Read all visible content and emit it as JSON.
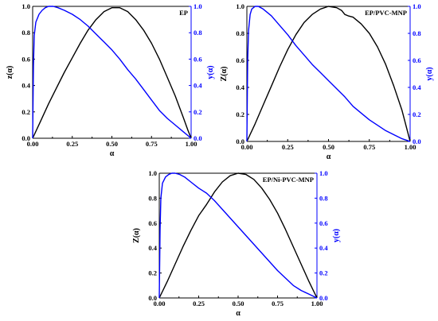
{
  "colors": {
    "z_series": "#000000",
    "y_series": "#0000ff",
    "axis_left": "#000000",
    "axis_right": "#0000ff"
  },
  "chart_data": [
    {
      "type": "line",
      "title": "EP",
      "xlabel": "α",
      "ylabel_left": "z(α)",
      "ylabel_right": "y(α)",
      "xlim": [
        0,
        1
      ],
      "ylim_left": [
        0,
        1.0
      ],
      "ylim_right": [
        0,
        1.0
      ],
      "xticks": [
        "0.00",
        "0.25",
        "0.50",
        "0.75",
        "1.00"
      ],
      "yticks_left": [
        "0.0",
        "0.2",
        "0.4",
        "0.6",
        "0.8",
        "1.0"
      ],
      "yticks_right": [
        "0.0",
        "0.2",
        "0.4",
        "0.6",
        "0.8",
        "1.0"
      ],
      "series": [
        {
          "axis": "left",
          "color": "#000000",
          "x": [
            0,
            0.05,
            0.1,
            0.15,
            0.2,
            0.25,
            0.3,
            0.35,
            0.4,
            0.45,
            0.5,
            0.55,
            0.6,
            0.65,
            0.7,
            0.75,
            0.8,
            0.85,
            0.9,
            0.95,
            0.98,
            1.0
          ],
          "y": [
            0,
            0.13,
            0.26,
            0.38,
            0.5,
            0.61,
            0.72,
            0.82,
            0.9,
            0.96,
            0.99,
            0.99,
            0.96,
            0.9,
            0.82,
            0.72,
            0.6,
            0.46,
            0.32,
            0.16,
            0.06,
            0
          ]
        },
        {
          "axis": "right",
          "color": "#0000ff",
          "x": [
            0,
            0.005,
            0.01,
            0.02,
            0.04,
            0.06,
            0.08,
            0.1,
            0.13,
            0.16,
            0.2,
            0.25,
            0.3,
            0.35,
            0.4,
            0.45,
            0.5,
            0.55,
            0.6,
            0.65,
            0.7,
            0.75,
            0.8,
            0.85,
            0.9,
            0.95,
            1.0
          ],
          "y": [
            0,
            0.55,
            0.78,
            0.88,
            0.94,
            0.97,
            0.99,
            1.0,
            1.0,
            0.99,
            0.97,
            0.94,
            0.9,
            0.85,
            0.79,
            0.73,
            0.67,
            0.6,
            0.52,
            0.45,
            0.37,
            0.29,
            0.21,
            0.15,
            0.1,
            0.05,
            0
          ]
        }
      ]
    },
    {
      "type": "line",
      "title": "EP/PVC-MNP",
      "xlabel": "α",
      "ylabel_left": "Z(α)",
      "ylabel_right": "y(α)",
      "xlim": [
        0,
        1
      ],
      "ylim_left": [
        0,
        1.0
      ],
      "ylim_right": [
        0,
        1.0
      ],
      "xticks": [
        "0.00",
        "0.25",
        "0.50",
        "0.75",
        "1.00"
      ],
      "yticks_left": [
        "0.0",
        "0.2",
        "0.4",
        "0.6",
        "0.8",
        "1.0"
      ],
      "yticks_right": [
        "0.0",
        "0.2",
        "0.4",
        "0.6",
        "0.8",
        "1.0"
      ],
      "series": [
        {
          "axis": "left",
          "color": "#000000",
          "x": [
            0,
            0.05,
            0.1,
            0.15,
            0.2,
            0.25,
            0.3,
            0.35,
            0.4,
            0.45,
            0.5,
            0.55,
            0.58,
            0.6,
            0.62,
            0.65,
            0.7,
            0.75,
            0.8,
            0.85,
            0.9,
            0.95,
            1.0
          ],
          "y": [
            0,
            0.13,
            0.27,
            0.41,
            0.55,
            0.68,
            0.79,
            0.88,
            0.94,
            0.98,
            1.0,
            0.99,
            0.97,
            0.94,
            0.93,
            0.92,
            0.87,
            0.8,
            0.7,
            0.57,
            0.41,
            0.23,
            0
          ]
        },
        {
          "axis": "right",
          "color": "#0000ff",
          "x": [
            0,
            0.005,
            0.01,
            0.02,
            0.03,
            0.05,
            0.07,
            0.1,
            0.15,
            0.2,
            0.25,
            0.3,
            0.35,
            0.4,
            0.45,
            0.5,
            0.55,
            0.6,
            0.65,
            0.7,
            0.75,
            0.8,
            0.85,
            0.9,
            0.95,
            1.0
          ],
          "y": [
            0,
            0.6,
            0.82,
            0.94,
            0.98,
            1.0,
            1.0,
            0.98,
            0.93,
            0.86,
            0.79,
            0.71,
            0.64,
            0.57,
            0.51,
            0.45,
            0.39,
            0.33,
            0.26,
            0.21,
            0.16,
            0.12,
            0.08,
            0.05,
            0.02,
            0
          ]
        }
      ]
    },
    {
      "type": "line",
      "title": "EP/Ni-PVC-MNP",
      "xlabel": "α",
      "ylabel_left": "Z(α)",
      "ylabel_right": "y(α)",
      "xlim": [
        0,
        1
      ],
      "ylim_left": [
        0,
        1.0
      ],
      "ylim_right": [
        0,
        1.0
      ],
      "xticks": [
        "0.00",
        "0.25",
        "0.50",
        "0.75",
        "1.00"
      ],
      "yticks_left": [
        "0.0",
        "0.2",
        "0.4",
        "0.6",
        "0.8",
        "1.0"
      ],
      "yticks_right": [
        "0.0",
        "0.2",
        "0.4",
        "0.6",
        "0.8",
        "1.0"
      ],
      "series": [
        {
          "axis": "left",
          "color": "#000000",
          "x": [
            0,
            0.05,
            0.1,
            0.15,
            0.2,
            0.25,
            0.3,
            0.35,
            0.4,
            0.45,
            0.5,
            0.55,
            0.6,
            0.65,
            0.7,
            0.75,
            0.8,
            0.85,
            0.9,
            0.95,
            1.0
          ],
          "y": [
            0,
            0.13,
            0.27,
            0.41,
            0.54,
            0.66,
            0.75,
            0.85,
            0.93,
            0.98,
            1.0,
            0.99,
            0.95,
            0.88,
            0.79,
            0.68,
            0.55,
            0.41,
            0.27,
            0.13,
            0
          ]
        },
        {
          "axis": "right",
          "color": "#0000ff",
          "x": [
            0,
            0.005,
            0.01,
            0.02,
            0.04,
            0.06,
            0.08,
            0.1,
            0.13,
            0.16,
            0.2,
            0.25,
            0.3,
            0.35,
            0.4,
            0.45,
            0.5,
            0.55,
            0.6,
            0.65,
            0.7,
            0.75,
            0.8,
            0.85,
            0.9,
            0.95,
            1.0
          ],
          "y": [
            0,
            0.55,
            0.8,
            0.92,
            0.97,
            0.99,
            1.0,
            1.0,
            0.99,
            0.97,
            0.93,
            0.88,
            0.84,
            0.78,
            0.71,
            0.64,
            0.57,
            0.5,
            0.43,
            0.36,
            0.29,
            0.22,
            0.16,
            0.1,
            0.06,
            0.03,
            0
          ]
        }
      ]
    }
  ]
}
